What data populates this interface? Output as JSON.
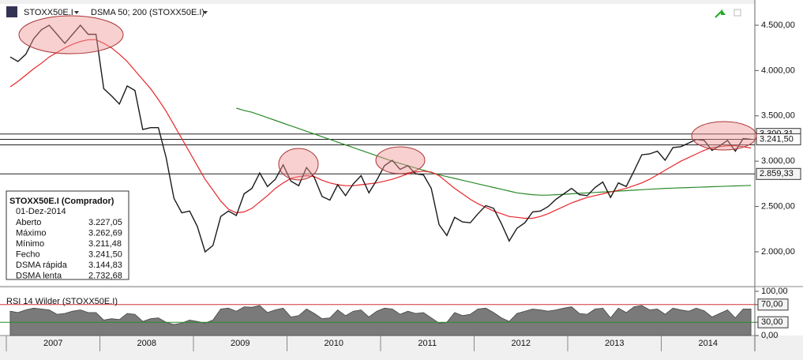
{
  "chart_data": [
    {
      "type": "line",
      "title": "STOXX50E.I",
      "subtitle": "DSMA 50; 200 (STOXX50E.I)",
      "categories": [
        "2007",
        null,
        null,
        null,
        null,
        null,
        null,
        null,
        null,
        null,
        null,
        null,
        "2008",
        null,
        null,
        null,
        null,
        null,
        null,
        null,
        null,
        null,
        null,
        null,
        "2009",
        null,
        null,
        null,
        null,
        null,
        null,
        null,
        null,
        null,
        null,
        null,
        "2010",
        null,
        null,
        null,
        null,
        null,
        null,
        null,
        null,
        null,
        null,
        null,
        "2011",
        null,
        null,
        null,
        null,
        null,
        null,
        null,
        null,
        null,
        null,
        null,
        "2012",
        null,
        null,
        null,
        null,
        null,
        null,
        null,
        null,
        null,
        null,
        null,
        "2013",
        null,
        null,
        null,
        null,
        null,
        null,
        null,
        null,
        null,
        null,
        null,
        "2014",
        null,
        null,
        null,
        null,
        null,
        null,
        null,
        null,
        null,
        null,
        null
      ],
      "series": [
        {
          "name": "STOXX50E.I",
          "color": "#1a1a1a",
          "values": [
            4150,
            4100,
            4180,
            4350,
            4450,
            4500,
            4400,
            4300,
            4400,
            4500,
            4400,
            4400,
            3800,
            3720,
            3630,
            3830,
            3780,
            3350,
            3370,
            3370,
            3040,
            2590,
            2430,
            2450,
            2280,
            2000,
            2070,
            2390,
            2450,
            2400,
            2640,
            2700,
            2870,
            2720,
            2800,
            2960,
            2780,
            2730,
            2930,
            2820,
            2610,
            2570,
            2740,
            2620,
            2750,
            2840,
            2650,
            2790,
            2950,
            3010,
            2910,
            2950,
            2860,
            2850,
            2700,
            2300,
            2180,
            2380,
            2330,
            2320,
            2420,
            2510,
            2480,
            2310,
            2120,
            2260,
            2320,
            2440,
            2450,
            2500,
            2580,
            2640,
            2700,
            2630,
            2620,
            2710,
            2770,
            2600,
            2760,
            2720,
            2890,
            3070,
            3080,
            3110,
            3010,
            3150,
            3160,
            3200,
            3240,
            3230,
            3120,
            3170,
            3230,
            3110,
            3250,
            3241.5
          ]
        },
        {
          "name": "DSMA rápida",
          "color": "#e8262b",
          "values": [
            3820,
            3880,
            3950,
            4020,
            4080,
            4150,
            4200,
            4250,
            4290,
            4320,
            4340,
            4340,
            4300,
            4250,
            4180,
            4100,
            4000,
            3900,
            3800,
            3680,
            3550,
            3400,
            3250,
            3100,
            2950,
            2800,
            2680,
            2560,
            2470,
            2430,
            2440,
            2480,
            2550,
            2620,
            2700,
            2760,
            2810,
            2830,
            2840,
            2830,
            2790,
            2760,
            2740,
            2730,
            2730,
            2740,
            2750,
            2760,
            2780,
            2800,
            2830,
            2860,
            2880,
            2890,
            2880,
            2840,
            2770,
            2700,
            2640,
            2580,
            2530,
            2490,
            2450,
            2420,
            2390,
            2380,
            2370,
            2370,
            2390,
            2420,
            2460,
            2500,
            2540,
            2570,
            2600,
            2620,
            2640,
            2660,
            2680,
            2700,
            2730,
            2760,
            2800,
            2850,
            2900,
            2950,
            3000,
            3040,
            3080,
            3120,
            3150,
            3160,
            3170,
            3170,
            3160,
            3144.83
          ]
        },
        {
          "name": "DSMA lenta",
          "color": "#2a8a2a",
          "values": [
            null,
            null,
            null,
            null,
            null,
            null,
            null,
            null,
            null,
            null,
            null,
            null,
            null,
            null,
            null,
            null,
            null,
            null,
            null,
            null,
            null,
            null,
            null,
            null,
            null,
            null,
            null,
            null,
            null,
            3585,
            3560,
            3540,
            3510,
            3480,
            3450,
            3420,
            3390,
            3360,
            3330,
            3300,
            3270,
            3240,
            3210,
            3180,
            3150,
            3120,
            3090,
            3060,
            3030,
            3000,
            2975,
            2950,
            2925,
            2900,
            2875,
            2850,
            2830,
            2810,
            2790,
            2770,
            2750,
            2730,
            2710,
            2690,
            2670,
            2650,
            2640,
            2630,
            2625,
            2625,
            2630,
            2635,
            2640,
            2645,
            2650,
            2655,
            2660,
            2665,
            2670,
            2675,
            2680,
            2685,
            2690,
            2695,
            2700,
            2703,
            2706,
            2709,
            2712,
            2715,
            2718,
            2721,
            2724,
            2727,
            2730,
            2732.68
          ]
        }
      ],
      "ylim": [
        1625,
        4735
      ],
      "yticks": [
        {
          "value": 2000,
          "label": "2.000,00"
        },
        {
          "value": 2500,
          "label": "2.500,00"
        },
        {
          "value": 3000,
          "label": "3.000,00"
        },
        {
          "value": 3500,
          "label": "3.500,00"
        },
        {
          "value": 4000,
          "label": "4.000,00"
        },
        {
          "value": 4500,
          "label": "4.500,00"
        }
      ],
      "levels": [
        {
          "value": 3300.31,
          "label": "3.300,31"
        },
        {
          "value": 3241.5,
          "label": "3.241,50"
        },
        {
          "value": 2859.33,
          "label": "2.859,33"
        }
      ],
      "extra_levels": [
        3180
      ],
      "info": {
        "title": "STOXX50E.I (Comprador)",
        "date": "01-Dez-2014",
        "rows": [
          {
            "label": "Aberto",
            "value": "3.227,05"
          },
          {
            "label": "Máximo",
            "value": "3.262,69"
          },
          {
            "label": "Mínimo",
            "value": "3.211,48"
          },
          {
            "label": "Fecho",
            "value": "3.241,50"
          },
          {
            "label": "DSMA rápida",
            "value": "3.144,83"
          },
          {
            "label": "DSMA lenta",
            "value": "2.732,68"
          }
        ]
      }
    },
    {
      "type": "area",
      "title": "RSI 14 Wilder (STOXX50E.I)",
      "color": "#7a7a7a",
      "values": [
        55,
        52,
        58,
        62,
        60,
        58,
        48,
        50,
        55,
        58,
        52,
        52,
        35,
        38,
        36,
        50,
        48,
        32,
        38,
        40,
        30,
        25,
        28,
        35,
        32,
        28,
        35,
        60,
        62,
        55,
        65,
        64,
        68,
        52,
        58,
        62,
        42,
        45,
        60,
        50,
        38,
        40,
        58,
        45,
        55,
        58,
        42,
        55,
        62,
        60,
        48,
        55,
        50,
        52,
        40,
        28,
        30,
        52,
        45,
        48,
        60,
        62,
        52,
        40,
        32,
        50,
        55,
        60,
        58,
        55,
        58,
        62,
        65,
        50,
        48,
        60,
        62,
        40,
        62,
        52,
        65,
        68,
        58,
        60,
        48,
        62,
        58,
        55,
        62,
        56,
        42,
        50,
        58,
        40,
        60,
        60
      ],
      "ylim": [
        0,
        100
      ],
      "yticks": [
        {
          "value": 0,
          "label": "0,00"
        },
        {
          "value": 30,
          "label": "30,00"
        },
        {
          "value": 70,
          "label": "70,00"
        },
        {
          "value": 100,
          "label": "100,00"
        }
      ]
    }
  ]
}
